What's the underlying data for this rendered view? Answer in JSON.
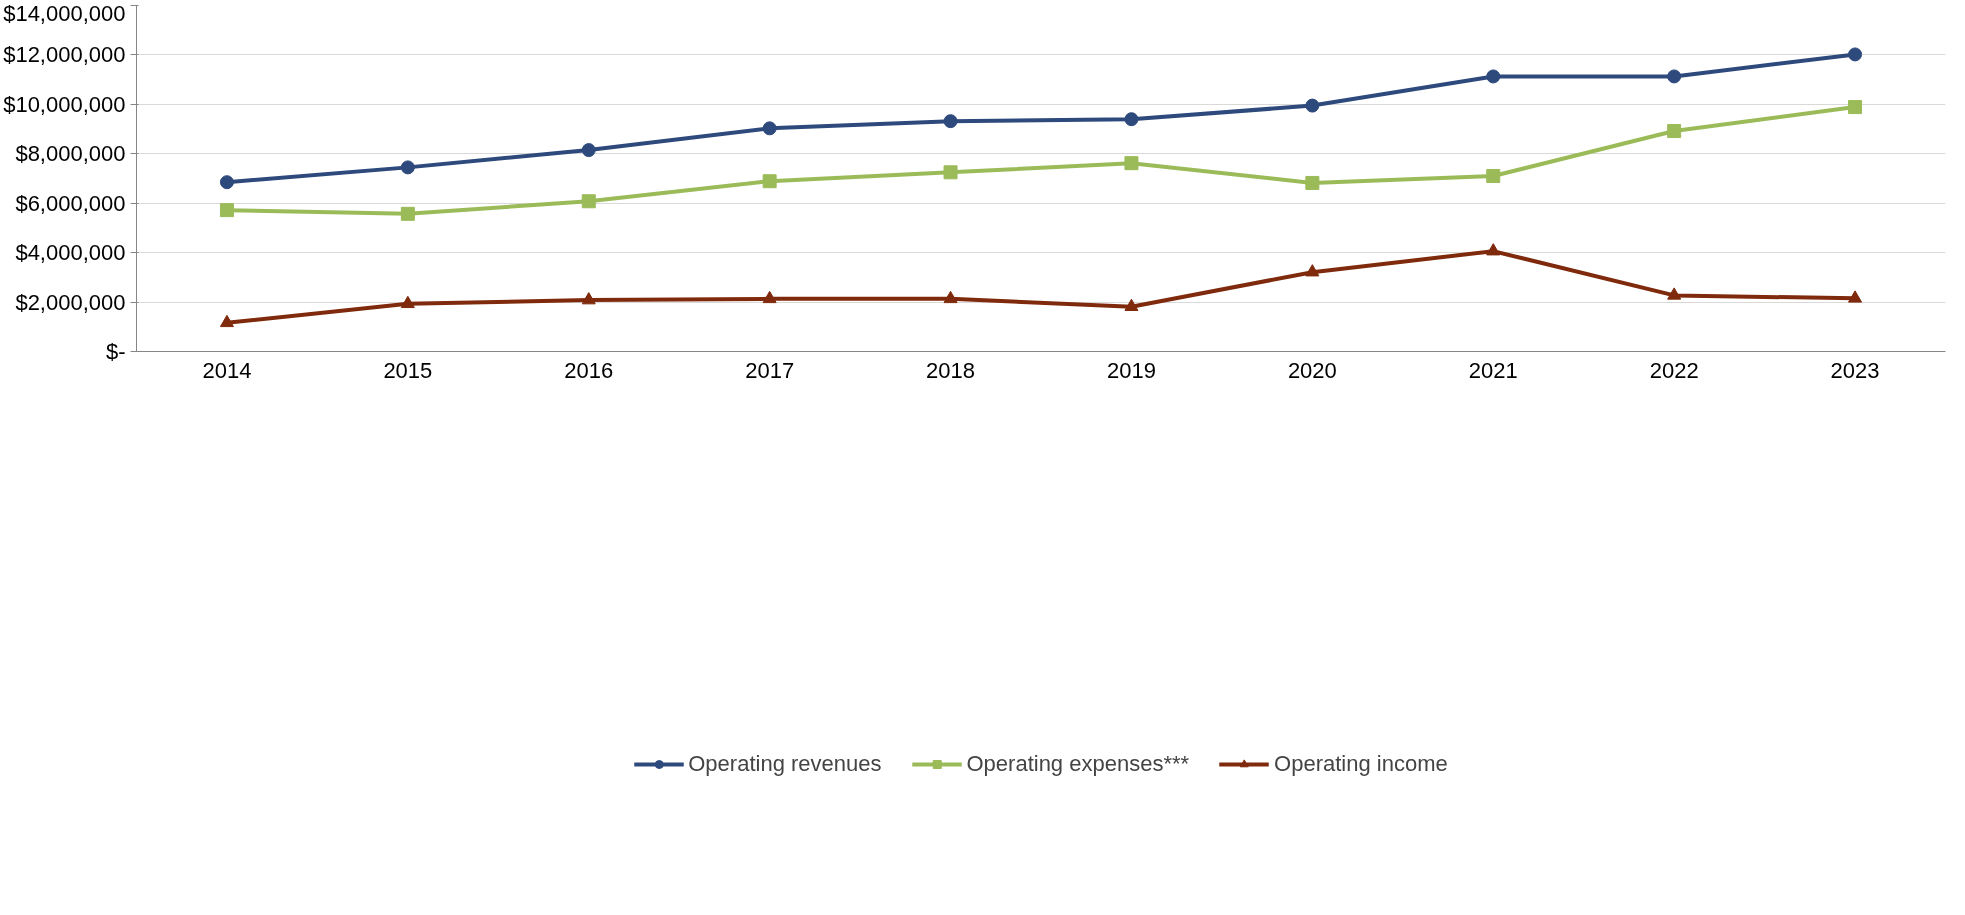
{
  "chart_data": {
    "type": "line",
    "categories": [
      "2014",
      "2015",
      "2016",
      "2017",
      "2018",
      "2019",
      "2020",
      "2021",
      "2022",
      "2023"
    ],
    "series": [
      {
        "name": "Operating revenues",
        "color": "#2e4a7d",
        "marker": "circle",
        "values": [
          6850000,
          7450000,
          8150000,
          9030000,
          9320000,
          9400000,
          9950000,
          11130000,
          11130000,
          12020000
        ]
      },
      {
        "name": "Operating expenses***",
        "color": "#9bbb59",
        "marker": "square",
        "values": [
          5720000,
          5570000,
          6080000,
          6890000,
          7250000,
          7620000,
          6820000,
          7100000,
          8920000,
          9890000
        ]
      },
      {
        "name": "Operating income",
        "color": "#7f2a0c",
        "marker": "triangle",
        "values": [
          1160000,
          1930000,
          2080000,
          2130000,
          2130000,
          1810000,
          3210000,
          4060000,
          2270000,
          2150000
        ]
      }
    ],
    "ylim": [
      0,
      14000000
    ],
    "yticks": [
      {
        "value": 0,
        "label": "$-"
      },
      {
        "value": 2000000,
        "label": "$2,000,000"
      },
      {
        "value": 4000000,
        "label": "$4,000,000"
      },
      {
        "value": 6000000,
        "label": "$6,000,000"
      },
      {
        "value": 8000000,
        "label": "$8,000,000"
      },
      {
        "value": 10000000,
        "label": "$10,000,000"
      },
      {
        "value": 12000000,
        "label": "$12,000,000"
      },
      {
        "value": 14000000,
        "label": "$14,000,000"
      }
    ],
    "grid": "y",
    "legend": "bottom",
    "line_style": "solid"
  }
}
